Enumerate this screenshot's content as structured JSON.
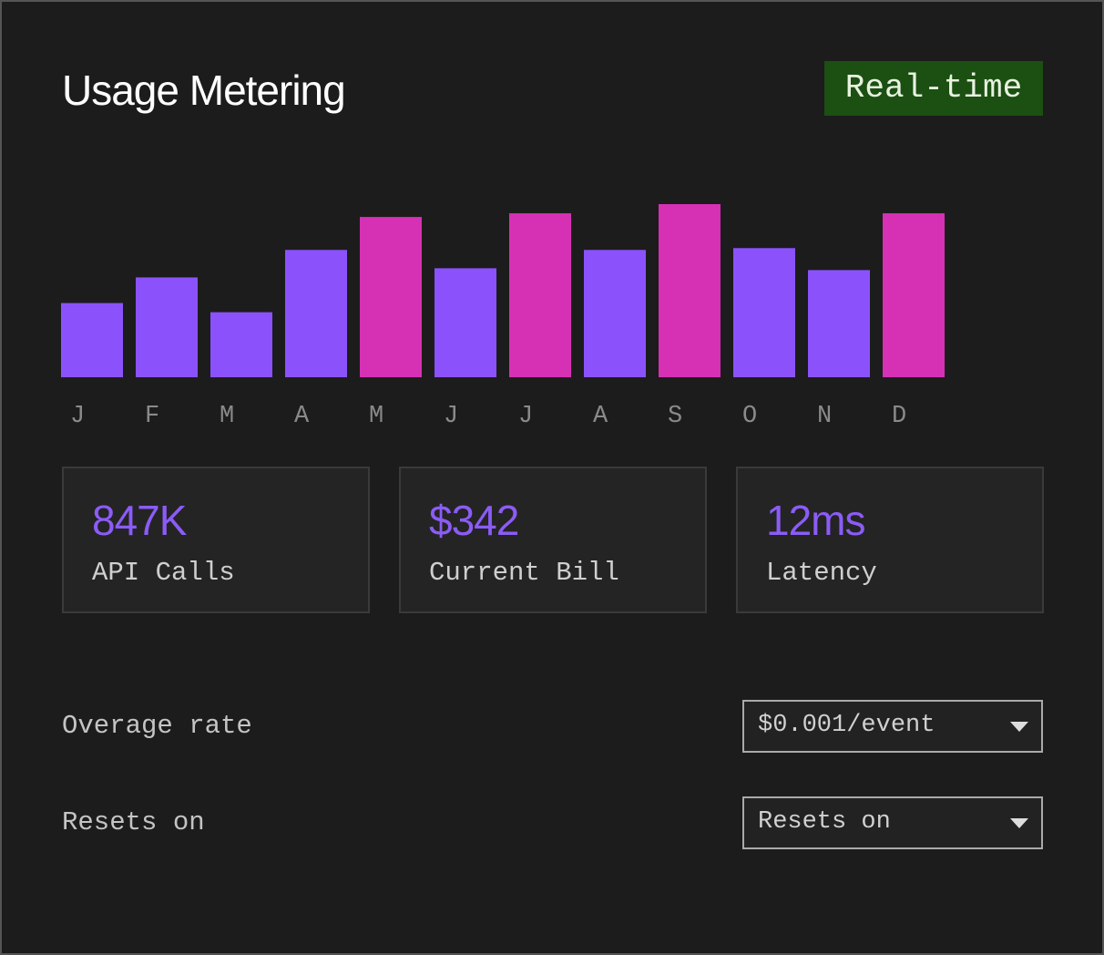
{
  "header": {
    "title": "Usage Metering",
    "badge": "Real-time"
  },
  "chart_data": {
    "type": "bar",
    "categories": [
      "J",
      "F",
      "M",
      "A",
      "M",
      "J",
      "J",
      "A",
      "S",
      "O",
      "N",
      "D"
    ],
    "values": [
      81,
      109,
      71,
      139,
      175,
      119,
      179,
      139,
      189,
      141,
      117,
      179
    ],
    "colors": [
      "#8b52fb",
      "#8b52fb",
      "#8b52fb",
      "#8b52fb",
      "#d631b4",
      "#8b52fb",
      "#d631b4",
      "#8b52fb",
      "#d631b4",
      "#8b52fb",
      "#8b52fb",
      "#d631b4"
    ]
  },
  "stats": [
    {
      "value": "847K",
      "label": "API Calls"
    },
    {
      "value": "$342",
      "label": "Current Bill"
    },
    {
      "value": "12ms",
      "label": "Latency"
    }
  ],
  "settings": [
    {
      "label": "Overage rate",
      "selected": "$0.001/event"
    },
    {
      "label": "Resets on",
      "selected": "Resets on"
    }
  ]
}
